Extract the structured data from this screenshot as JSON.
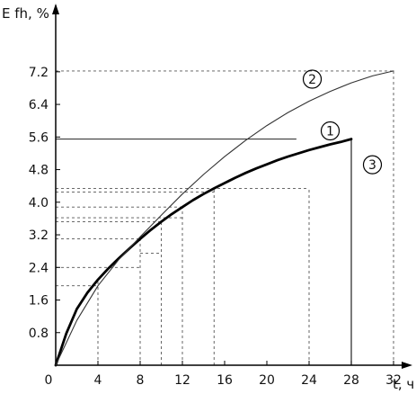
{
  "chart_data": {
    "type": "line",
    "ylabel": "E fh, %",
    "xlabel": "t, ч",
    "xlim": [
      0,
      33
    ],
    "ylim": [
      0,
      8
    ],
    "xticks": [
      0,
      4,
      8,
      12,
      16,
      20,
      24,
      28,
      32
    ],
    "xtick_labels": [
      "0",
      "4",
      "8",
      "12",
      "16",
      "20",
      "24",
      "28",
      "32"
    ],
    "yticks": [
      0.8,
      1.6,
      2.4,
      3.2,
      4.0,
      4.8,
      5.6,
      6.4,
      7.2
    ],
    "ytick_labels": [
      "0.8",
      "1.6",
      "2.4",
      "3.2",
      "4.0",
      "4.8",
      "5.6",
      "6.4",
      "7.2"
    ],
    "grid": "dashed reference lines",
    "series": [
      {
        "name": "1",
        "style": "thick",
        "color": "#000000",
        "x": [
          0,
          1,
          2,
          3,
          4,
          5,
          6,
          7,
          8,
          9,
          10,
          11,
          12,
          13,
          14,
          15,
          16,
          17,
          18,
          19,
          20,
          21,
          22,
          23,
          24,
          25,
          26,
          27,
          28
        ],
        "y": [
          0,
          0.78,
          1.38,
          1.78,
          2.1,
          2.38,
          2.63,
          2.87,
          3.1,
          3.32,
          3.52,
          3.71,
          3.88,
          4.05,
          4.2,
          4.34,
          4.47,
          4.6,
          4.72,
          4.83,
          4.93,
          5.03,
          5.12,
          5.2,
          5.28,
          5.35,
          5.42,
          5.48,
          5.55
        ]
      },
      {
        "name": "2",
        "style": "thin",
        "color": "#333333",
        "x": [
          0,
          2,
          4,
          6,
          8,
          10,
          12,
          14,
          16,
          18,
          20,
          22,
          24,
          26,
          28,
          30,
          32
        ],
        "y": [
          0,
          1.1,
          1.95,
          2.6,
          3.15,
          3.68,
          4.2,
          4.68,
          5.12,
          5.52,
          5.88,
          6.2,
          6.48,
          6.72,
          6.93,
          7.1,
          7.22
        ]
      }
    ],
    "annotations": [
      {
        "label": "1",
        "x": 26.0,
        "y": 5.75
      },
      {
        "label": "2",
        "x": 24.3,
        "y": 7.02
      },
      {
        "label": "3",
        "x": 30.0,
        "y": 4.92
      }
    ],
    "reference_lines": {
      "solid_h": [
        {
          "y": 5.55,
          "x0": 0,
          "x1": 22.8
        }
      ],
      "dashed_h": [
        {
          "y": 7.22,
          "x0": 0,
          "x1": 32.0
        },
        {
          "y": 4.34,
          "x0": 0,
          "x1": 24.0
        },
        {
          "y": 4.25,
          "x0": 0,
          "x1": 15.0
        },
        {
          "y": 3.88,
          "x0": 0,
          "x1": 12.0
        },
        {
          "y": 3.62,
          "x0": 0,
          "x1": 12.0
        },
        {
          "y": 3.52,
          "x0": 0,
          "x1": 10.0
        },
        {
          "y": 3.1,
          "x0": 0,
          "x1": 8.0
        },
        {
          "y": 2.75,
          "x0": 8.0,
          "x1": 10.0
        },
        {
          "y": 2.4,
          "x0": 0,
          "x1": 8.0
        },
        {
          "y": 1.95,
          "x0": 0,
          "x1": 4.0
        }
      ],
      "dashed_v": [
        {
          "x": 4,
          "y1": 2.1
        },
        {
          "x": 8,
          "y1": 3.1
        },
        {
          "x": 10,
          "y1": 3.52
        },
        {
          "x": 12,
          "y1": 3.88
        },
        {
          "x": 15,
          "y1": 4.34
        },
        {
          "x": 24,
          "y1": 4.34
        },
        {
          "x": 32,
          "y1": 7.22
        }
      ],
      "solid_v": [
        {
          "x": 28,
          "y1": 5.55
        }
      ]
    }
  }
}
